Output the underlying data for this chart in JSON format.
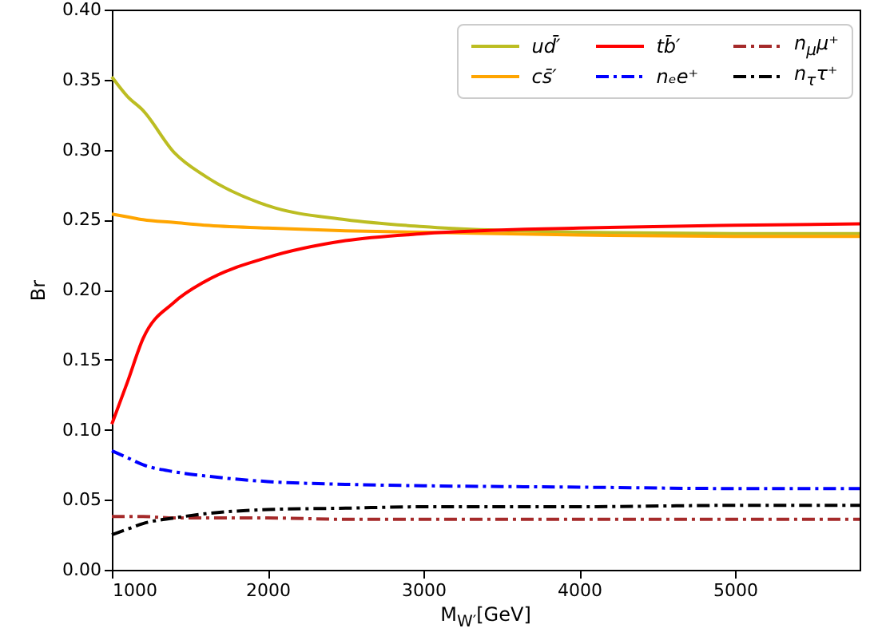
{
  "chart_data": {
    "type": "line",
    "xlabel": "M$_{W′}$[GeV]",
    "ylabel": "Br",
    "x": [
      1000,
      1100,
      1200,
      1400,
      1600,
      2000,
      2500,
      3000,
      4000,
      5000,
      5800
    ],
    "series": [
      {
        "name": "ud̄′",
        "color": "#bcbd22",
        "values": [
          0.352,
          0.338,
          0.328,
          0.298,
          0.281,
          0.26,
          0.25,
          0.245,
          0.241,
          0.24,
          0.24
        ]
      },
      {
        "name": "cs̄′",
        "color": "#ffa500",
        "values": [
          0.254,
          0.252,
          0.25,
          0.248,
          0.246,
          0.244,
          0.242,
          0.241,
          0.239,
          0.238,
          0.238
        ]
      },
      {
        "name": "tb̄′",
        "color": "#ff0000",
        "values": [
          0.104,
          0.134,
          0.165,
          0.191,
          0.206,
          0.223,
          0.235,
          0.24,
          0.244,
          0.246,
          0.247
        ]
      },
      {
        "name": "nₑe⁺",
        "color": "#0000ff",
        "line_style": "dashdot",
        "values": [
          0.085,
          0.08,
          0.075,
          0.07,
          0.067,
          0.063,
          0.061,
          0.06,
          0.059,
          0.058,
          0.058
        ]
      },
      {
        "name": "n$_{μ}$μ⁺",
        "color": "#a52a2a",
        "line_style": "dashdot",
        "values": [
          0.038,
          0.038,
          0.038,
          0.037,
          0.037,
          0.037,
          0.036,
          0.036,
          0.036,
          0.036,
          0.036
        ]
      },
      {
        "name": "n$_{τ}$τ⁺",
        "color": "#000000",
        "line_style": "dashdot",
        "values": [
          0.025,
          0.029,
          0.033,
          0.037,
          0.04,
          0.043,
          0.044,
          0.045,
          0.045,
          0.046,
          0.046
        ]
      }
    ],
    "xlim": [
      1000,
      5800
    ],
    "xticks": [
      1000,
      2000,
      3000,
      4000,
      5000
    ],
    "ylim": [
      0,
      0.4
    ],
    "yticks": [
      {
        "value": 0,
        "label": "0.00"
      },
      0.05,
      {
        "value": 0.1,
        "label": "0.10"
      },
      0.15,
      {
        "value": 0.2,
        "label": "0.20"
      },
      0.25,
      {
        "value": 0.3,
        "label": "0.30"
      },
      0.35,
      {
        "value": 0.4,
        "label": "0.40"
      }
    ],
    "legend": "top right",
    "grid": false,
    "marker": "none"
  }
}
